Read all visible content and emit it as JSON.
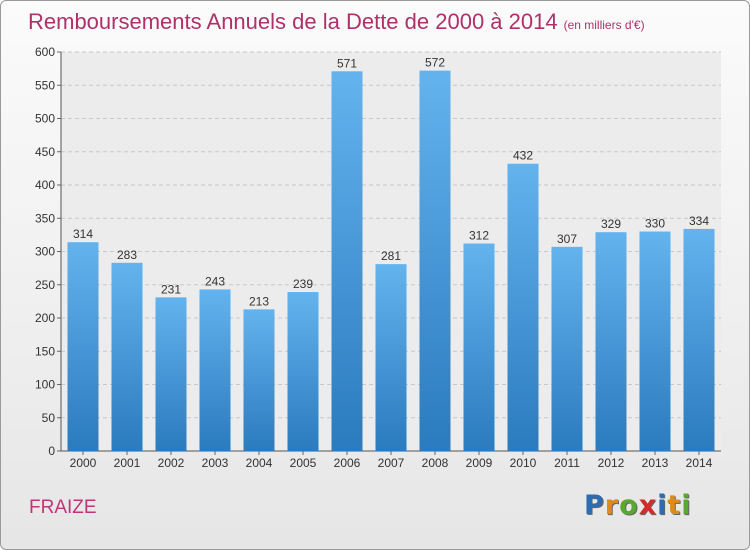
{
  "header": {
    "title": "Remboursements Annuels de la Dette de 2000 à 2014",
    "subtitle": "(en milliers d'€)"
  },
  "footer": {
    "place": "FRAIZE",
    "logo_letters": [
      "P",
      "r",
      "o",
      "x",
      "i",
      "t",
      "i"
    ],
    "logo_colors": [
      "#2b6cb4",
      "#e08a1e",
      "#5aa832",
      "#d42a2a",
      "#2b6cb4",
      "#e08a1e",
      "#5aa832"
    ]
  },
  "colors": {
    "bar_light": "#63b3ee",
    "bar_dark": "#2a7bbf",
    "title": "#b0306a"
  },
  "chart_data": {
    "type": "bar",
    "title": "Remboursements Annuels de la Dette de 2000 à 2014",
    "subtitle": "(en milliers d'€)",
    "categories": [
      "2000",
      "2001",
      "2002",
      "2003",
      "2004",
      "2005",
      "2006",
      "2007",
      "2008",
      "2009",
      "2010",
      "2011",
      "2012",
      "2013",
      "2014"
    ],
    "values": [
      314,
      283,
      231,
      243,
      213,
      239,
      571,
      281,
      572,
      312,
      432,
      307,
      329,
      330,
      334
    ],
    "ylim": [
      0,
      600
    ],
    "yticks": [
      0,
      50,
      100,
      150,
      200,
      250,
      300,
      350,
      400,
      450,
      500,
      550,
      600
    ],
    "grid": true,
    "data_labels": true
  }
}
